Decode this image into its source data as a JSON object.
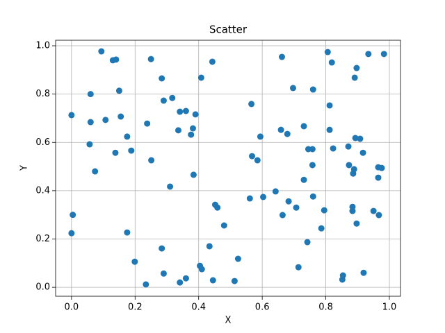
{
  "chart_data": {
    "type": "scatter",
    "title": "Scatter",
    "x_label": "X",
    "y_label": "Y",
    "color": "#1f77b4",
    "grid": true,
    "xlim": [
      -0.05,
      1.035
    ],
    "ylim": [
      -0.037,
      1.023
    ],
    "xticks": [
      {
        "value": 0,
        "label": "0.0"
      },
      {
        "value": 0.2,
        "label": "0.2"
      },
      {
        "value": 0.4,
        "label": "0.4"
      },
      {
        "value": 0.6,
        "label": "0.6"
      },
      {
        "value": 0.8,
        "label": "0.8"
      },
      {
        "value": 1,
        "label": "1.0"
      }
    ],
    "yticks": [
      {
        "value": 0,
        "label": "0.0"
      },
      {
        "value": 0.2,
        "label": "0.2"
      },
      {
        "value": 0.4,
        "label": "0.4"
      },
      {
        "value": 0.6,
        "label": "0.6"
      },
      {
        "value": 0.8,
        "label": "0.8"
      },
      {
        "value": 1,
        "label": "1.0"
      }
    ],
    "x": [
      0.0,
      0.004,
      0.0,
      0.094,
      0.13,
      0.14,
      0.25,
      0.06,
      0.15,
      0.06,
      0.107,
      0.155,
      0.057,
      0.175,
      0.138,
      0.188,
      0.074,
      0.238,
      0.251,
      0.175,
      0.199,
      0.234,
      0.284,
      0.317,
      0.29,
      0.341,
      0.36,
      0.39,
      0.336,
      0.382,
      0.376,
      0.31,
      0.384,
      0.284,
      0.29,
      0.36,
      0.341,
      0.408,
      0.443,
      0.404,
      0.41,
      0.434,
      0.452,
      0.459,
      0.48,
      0.445,
      0.524,
      0.513,
      0.566,
      0.568,
      0.585,
      0.594,
      0.561,
      0.603,
      0.642,
      0.662,
      0.697,
      0.659,
      0.679,
      0.731,
      0.745,
      0.758,
      0.76,
      0.758,
      0.731,
      0.76,
      0.683,
      0.707,
      0.664,
      0.742,
      0.714,
      0.806,
      0.819,
      0.812,
      0.812,
      0.823,
      0.795,
      0.786,
      0.897,
      0.891,
      0.893,
      0.908,
      0.917,
      0.871,
      0.873,
      0.889,
      0.886,
      0.884,
      0.884,
      0.897,
      0.854,
      0.852,
      0.919,
      0.934,
      0.983,
      0.965,
      0.976,
      0.965,
      0.95,
      0.967
    ],
    "values": [
      0.713,
      0.3,
      0.224,
      0.977,
      0.94,
      0.943,
      0.945,
      0.8,
      0.814,
      0.684,
      0.693,
      0.707,
      0.592,
      0.624,
      0.557,
      0.566,
      0.48,
      0.678,
      0.526,
      0.227,
      0.106,
      0.012,
      0.865,
      0.784,
      0.773,
      0.727,
      0.73,
      0.716,
      0.65,
      0.658,
      0.632,
      0.417,
      0.466,
      0.161,
      0.057,
      0.037,
      0.02,
      0.868,
      0.934,
      0.089,
      0.075,
      0.17,
      0.342,
      0.33,
      0.256,
      0.029,
      0.118,
      0.026,
      0.759,
      0.543,
      0.526,
      0.624,
      0.368,
      0.374,
      0.397,
      0.954,
      0.825,
      0.652,
      0.635,
      0.667,
      0.572,
      0.572,
      0.819,
      0.506,
      0.445,
      0.376,
      0.356,
      0.33,
      0.299,
      0.187,
      0.083,
      0.974,
      0.931,
      0.753,
      0.652,
      0.575,
      0.319,
      0.244,
      0.908,
      0.868,
      0.618,
      0.615,
      0.557,
      0.583,
      0.506,
      0.489,
      0.471,
      0.333,
      0.316,
      0.264,
      0.049,
      0.032,
      0.06,
      0.966,
      0.966,
      0.497,
      0.494,
      0.454,
      0.316,
      0.299
    ]
  }
}
